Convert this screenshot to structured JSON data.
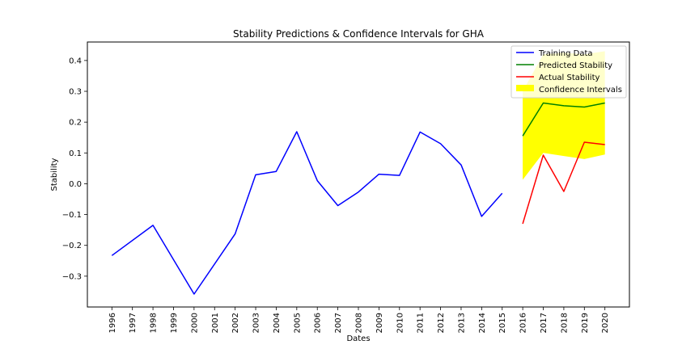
{
  "chart_data": {
    "type": "line",
    "title": "Stability Predictions & Confidence Intervals for GHA",
    "xlabel": "Dates",
    "ylabel": "Stability",
    "ylim": [
      -0.4,
      0.46
    ],
    "x_ticks": [
      "1996",
      "1997",
      "1998",
      "1999",
      "2000",
      "2001",
      "2002",
      "2003",
      "2004",
      "2005",
      "2006",
      "2007",
      "2008",
      "2009",
      "2010",
      "2011",
      "2012",
      "2013",
      "2014",
      "2015",
      "2016",
      "2017",
      "2018",
      "2019",
      "2020"
    ],
    "y_ticks": [
      "0.4",
      "0.3",
      "0.2",
      "0.1",
      "0.0",
      "−0.1",
      "−0.2",
      "−0.3"
    ],
    "y_tick_values": [
      0.4,
      0.3,
      0.2,
      0.1,
      0.0,
      -0.1,
      -0.2,
      -0.3
    ],
    "grid": false,
    "legend_placement": "top-right",
    "series": [
      {
        "name": "Training Data",
        "color": "#0000ff",
        "x": [
          1996,
          1998,
          2000,
          2002,
          2003,
          2004,
          2005,
          2006,
          2007,
          2008,
          2009,
          2010,
          2011,
          2012,
          2013,
          2014,
          2015
        ],
        "values": [
          -0.233,
          -0.135,
          -0.358,
          -0.163,
          0.029,
          0.04,
          0.169,
          0.01,
          -0.071,
          -0.027,
          0.031,
          0.027,
          0.168,
          0.13,
          0.061,
          -0.106,
          -0.031
        ]
      },
      {
        "name": "Predicted Stability",
        "color": "#008000",
        "x": [
          2016,
          2017,
          2018,
          2019,
          2020
        ],
        "values": [
          0.155,
          0.262,
          0.253,
          0.249,
          0.262
        ]
      },
      {
        "name": "Actual Stability",
        "color": "#ff0000",
        "x": [
          2016,
          2017,
          2018,
          2019,
          2020
        ],
        "values": [
          -0.13,
          0.093,
          -0.025,
          0.135,
          0.127
        ]
      }
    ],
    "confidence_interval": {
      "name": "Confidence Intervals",
      "color": "#ffff00",
      "x": [
        2016,
        2017,
        2018,
        2019,
        2020
      ],
      "lower": [
        0.013,
        0.1,
        0.09,
        0.08,
        0.095
      ],
      "upper": [
        0.3,
        0.42,
        0.425,
        0.42,
        0.43
      ]
    }
  }
}
